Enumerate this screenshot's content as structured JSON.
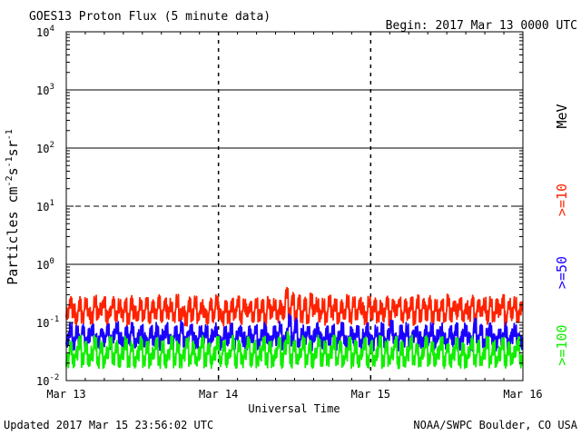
{
  "header": {
    "title": "GOES13 Proton Flux (5 minute data)",
    "begin": "Begin: 2017 Mar 13 0000 UTC"
  },
  "footer": {
    "updated": "Updated 2017 Mar 15 23:56:02 UTC",
    "source": "NOAA/SWPC Boulder, CO USA"
  },
  "chart_data": {
    "type": "line",
    "title": "GOES13 Proton Flux (5 minute data)",
    "xlabel": "Universal Time",
    "ylabel": "Particles cm-2s-1sr-1",
    "yscale": "log",
    "ylim": [
      0.01,
      10000
    ],
    "y_ticks": [
      {
        "value": 0.01,
        "base": "10",
        "exp": "-2"
      },
      {
        "value": 0.1,
        "base": "10",
        "exp": "-1"
      },
      {
        "value": 1,
        "base": "10",
        "exp": "0"
      },
      {
        "value": 10,
        "base": "10",
        "exp": "1"
      },
      {
        "value": 100,
        "base": "10",
        "exp": "2"
      },
      {
        "value": 1000,
        "base": "10",
        "exp": "3"
      },
      {
        "value": 10000,
        "base": "10",
        "exp": "4"
      }
    ],
    "x_ticks": [
      "Mar 13",
      "Mar 14",
      "Mar 15",
      "Mar 16"
    ],
    "x_range_days": [
      0,
      3
    ],
    "threshold_lines": [
      {
        "value": 1,
        "style": "solid"
      },
      {
        "value": 10,
        "style": "dashed"
      },
      {
        "value": 100,
        "style": "solid"
      },
      {
        "value": 1000,
        "style": "solid"
      }
    ],
    "legend": {
      "unit": "MeV",
      "placement": "right"
    },
    "series": [
      {
        "name": ">=10",
        "color": "#ff2200",
        "values": [
          0.2,
          0.3,
          0.22,
          0.16,
          0.28,
          0.17,
          0.29,
          0.2,
          0.16,
          0.31,
          0.19,
          0.24,
          0.28,
          0.17,
          0.2,
          0.3,
          0.17,
          0.26,
          0.19,
          0.27,
          0.16,
          0.3,
          0.21,
          0.17,
          0.28,
          0.19,
          0.29,
          0.16,
          0.25,
          0.18,
          0.3,
          0.17,
          0.28,
          0.21,
          0.26,
          0.17,
          0.31,
          0.19,
          0.21,
          0.16,
          0.28,
          0.18,
          0.29,
          0.17,
          0.25,
          0.2,
          0.16,
          0.27,
          0.18,
          0.31,
          0.2,
          0.16,
          0.26,
          0.17,
          0.28,
          0.19,
          0.29,
          0.17,
          0.27,
          0.22,
          0.25,
          0.18,
          0.3,
          0.17,
          0.26,
          0.16,
          0.29,
          0.21,
          0.27,
          0.18,
          0.24,
          0.19,
          0.43,
          0.2,
          0.35,
          0.17,
          0.31,
          0.18,
          0.29,
          0.16,
          0.32,
          0.22,
          0.27,
          0.18,
          0.26,
          0.16,
          0.3,
          0.2,
          0.28,
          0.17,
          0.26,
          0.19,
          0.31,
          0.17,
          0.29,
          0.18,
          0.27,
          0.22,
          0.16,
          0.29,
          0.2,
          0.28,
          0.17,
          0.25,
          0.19,
          0.3,
          0.16,
          0.27,
          0.21,
          0.29,
          0.17,
          0.26,
          0.19,
          0.28,
          0.16,
          0.3,
          0.18,
          0.27,
          0.2,
          0.29,
          0.17,
          0.26,
          0.19,
          0.28,
          0.16,
          0.31,
          0.18,
          0.27,
          0.21,
          0.29,
          0.17,
          0.25,
          0.19,
          0.3,
          0.16,
          0.28,
          0.2,
          0.27,
          0.17,
          0.29,
          0.18,
          0.26,
          0.21,
          0.3,
          0.16,
          0.27,
          0.19,
          0.28,
          0.17,
          0.25
        ]
      },
      {
        "name": ">=50",
        "color": "#1a00ff",
        "values": [
          0.07,
          0.1,
          0.06,
          0.09,
          0.07,
          0.1,
          0.06,
          0.08,
          0.1,
          0.07,
          0.06,
          0.09,
          0.07,
          0.1,
          0.06,
          0.08,
          0.11,
          0.07,
          0.06,
          0.09,
          0.07,
          0.1,
          0.06,
          0.08,
          0.1,
          0.07,
          0.06,
          0.09,
          0.07,
          0.1,
          0.06,
          0.08,
          0.1,
          0.07,
          0.06,
          0.09,
          0.07,
          0.11,
          0.06,
          0.08,
          0.1,
          0.07,
          0.06,
          0.09,
          0.07,
          0.1,
          0.06,
          0.08,
          0.1,
          0.07,
          0.06,
          0.09,
          0.07,
          0.1,
          0.06,
          0.08,
          0.1,
          0.07,
          0.06,
          0.09,
          0.07,
          0.1,
          0.06,
          0.08,
          0.1,
          0.07,
          0.06,
          0.09,
          0.07,
          0.11,
          0.06,
          0.08,
          0.15,
          0.07,
          0.12,
          0.06,
          0.09,
          0.07,
          0.1,
          0.06,
          0.08,
          0.1,
          0.07,
          0.06,
          0.09,
          0.07,
          0.1,
          0.06,
          0.08,
          0.1,
          0.07,
          0.06,
          0.09,
          0.07,
          0.1,
          0.06,
          0.08,
          0.1,
          0.07,
          0.06,
          0.09,
          0.07,
          0.1,
          0.06,
          0.08,
          0.11,
          0.07,
          0.06,
          0.09,
          0.07,
          0.1,
          0.06,
          0.08,
          0.1,
          0.07,
          0.06,
          0.09,
          0.07,
          0.1,
          0.06,
          0.08,
          0.1,
          0.07,
          0.06,
          0.09,
          0.07,
          0.1,
          0.06,
          0.08,
          0.1,
          0.07,
          0.06,
          0.12,
          0.07,
          0.1,
          0.06,
          0.08,
          0.1,
          0.07,
          0.06,
          0.09,
          0.07,
          0.1,
          0.06,
          0.08,
          0.1,
          0.07,
          0.06
        ]
      },
      {
        "name": ">=100",
        "color": "#11ee00",
        "values": [
          0.03,
          0.05,
          0.03,
          0.04,
          0.06,
          0.03,
          0.05,
          0.03,
          0.04,
          0.06,
          0.03,
          0.05,
          0.03,
          0.04,
          0.06,
          0.03,
          0.05,
          0.03,
          0.04,
          0.06,
          0.03,
          0.05,
          0.03,
          0.04,
          0.06,
          0.03,
          0.05,
          0.03,
          0.04,
          0.06,
          0.03,
          0.05,
          0.03,
          0.04,
          0.06,
          0.03,
          0.05,
          0.03,
          0.04,
          0.06,
          0.03,
          0.05,
          0.03,
          0.04,
          0.06,
          0.03,
          0.05,
          0.03,
          0.04,
          0.06,
          0.03,
          0.05,
          0.03,
          0.04,
          0.06,
          0.03,
          0.05,
          0.03,
          0.04,
          0.06,
          0.03,
          0.05,
          0.03,
          0.04,
          0.06,
          0.03,
          0.05,
          0.03,
          0.04,
          0.06,
          0.03,
          0.05,
          0.07,
          0.03,
          0.05,
          0.03,
          0.04,
          0.06,
          0.03,
          0.05,
          0.03,
          0.04,
          0.06,
          0.03,
          0.05,
          0.03,
          0.04,
          0.06,
          0.03,
          0.05,
          0.03,
          0.04,
          0.06,
          0.03,
          0.05,
          0.03,
          0.04,
          0.06,
          0.03,
          0.05,
          0.03,
          0.04,
          0.06,
          0.03,
          0.05,
          0.03,
          0.04,
          0.06,
          0.03,
          0.05,
          0.03,
          0.04,
          0.06,
          0.03,
          0.05,
          0.03,
          0.04,
          0.06,
          0.03,
          0.05,
          0.03,
          0.04,
          0.06,
          0.03,
          0.05,
          0.03,
          0.04,
          0.06,
          0.03,
          0.05,
          0.03,
          0.04,
          0.06,
          0.03,
          0.05,
          0.03,
          0.04,
          0.06,
          0.03,
          0.05,
          0.03,
          0.04,
          0.06,
          0.03,
          0.05,
          0.03,
          0.04,
          0.06,
          0.03
        ]
      }
    ]
  }
}
